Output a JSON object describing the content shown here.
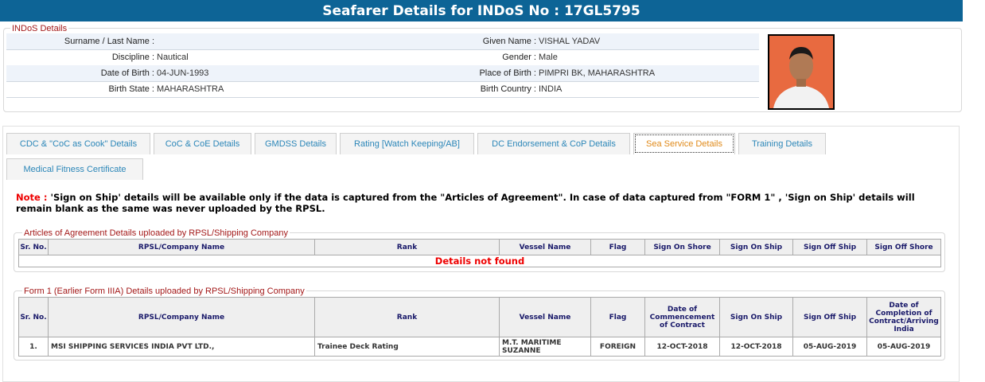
{
  "header": {
    "title": "Seafarer Details for INDoS No : 17GL5795"
  },
  "indos": {
    "legend": "INDoS Details",
    "rows": [
      {
        "l1": "Surname / Last Name :",
        "v1": "",
        "l2": "Given Name :",
        "v2": "VISHAL YADAV"
      },
      {
        "l1": "Discipline :",
        "v1": "Nautical",
        "l2": "Gender :",
        "v2": "Male"
      },
      {
        "l1": "Date of Birth :",
        "v1": "04-JUN-1993",
        "l2": "Place of Birth :",
        "v2": "PIMPRI BK, MAHARASHTRA"
      },
      {
        "l1": "Birth State :",
        "v1": "MAHARASHTRA",
        "l2": "Birth Country :",
        "v2": "INDIA"
      }
    ]
  },
  "tabs": [
    {
      "label": "CDC & \"CoC as Cook\" Details"
    },
    {
      "label": "CoC & CoE Details"
    },
    {
      "label": "GMDSS Details"
    },
    {
      "label": "Rating [Watch Keeping/AB]"
    },
    {
      "label": "DC Endorsement & CoP Details"
    },
    {
      "label": "Sea Service Details",
      "active": true
    },
    {
      "label": "Training Details"
    },
    {
      "label": "Medical Fitness Certificate"
    }
  ],
  "note": {
    "prefix": "Note :",
    "text": " 'Sign on Ship' details will be available only if the data is captured from the \"Articles of Agreement\". In case of data captured from \"FORM 1\" , 'Sign on Ship' details will remain blank as the same was never uploaded by the RPSL."
  },
  "articles": {
    "legend": "Articles of Agreement Details uploaded by RPSL/Shipping Company",
    "headers": [
      "Sr. No.",
      "RPSL/Company Name",
      "Rank",
      "Vessel Name",
      "Flag",
      "Sign On Shore",
      "Sign On Ship",
      "Sign Off Ship",
      "Sign Off Shore"
    ],
    "empty": "Details not found"
  },
  "form1": {
    "legend": "Form 1 (Earlier Form IIIA) Details uploaded by RPSL/Shipping Company",
    "headers": [
      "Sr. No.",
      "RPSL/Company Name",
      "Rank",
      "Vessel Name",
      "Flag",
      "Date of Commencement of Contract",
      "Sign On Ship",
      "Sign Off Ship",
      "Date of Completion of Contract/Arriving India"
    ],
    "rows": [
      [
        "1.",
        "MSI SHIPPING SERVICES INDIA PVT LTD.,",
        "Trainee Deck Rating",
        "M.T. MARITIME SUZANNE",
        "FOREIGN",
        "12-OCT-2018",
        "12-OCT-2018",
        "05-AUG-2019",
        "05-AUG-2019"
      ]
    ]
  }
}
